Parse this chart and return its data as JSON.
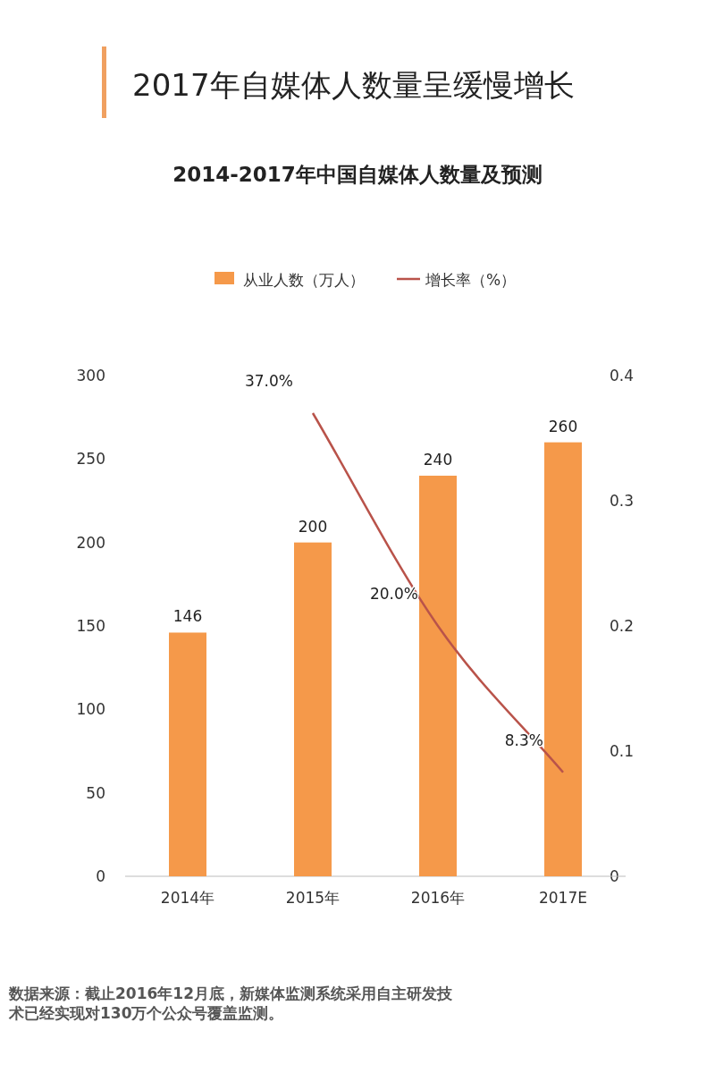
{
  "chart_data": {
    "type": "bar",
    "title": "2017年自媒体人数量呈缓慢增长",
    "subtitle": "2014-2017年中国自媒体人数量及预测",
    "categories": [
      "2014年",
      "2015年",
      "2016年",
      "2017E"
    ],
    "series": [
      {
        "name": "从业人数（万人）",
        "color": "#f5994a",
        "values": [
          146,
          200,
          240,
          260
        ],
        "value_labels": [
          "146",
          "200",
          "240",
          "260"
        ]
      },
      {
        "name": "增长率（%）",
        "type": "line",
        "axis": "y2",
        "color": "#b9534a",
        "values": [
          null,
          0.37,
          0.2,
          0.083
        ],
        "value_labels": [
          null,
          "37.0%",
          "20.0%",
          "8.3%"
        ]
      }
    ],
    "ylim": [
      0,
      300
    ],
    "yticks": [
      0,
      50,
      100,
      150,
      200,
      250,
      300
    ],
    "y2lim": [
      0,
      0.4
    ],
    "y2ticks": [
      0,
      0.1,
      0.2,
      0.3,
      0.4
    ],
    "legend": "top",
    "grid": false,
    "marker": "none",
    "line_style": "solid",
    "annotations": [
      "数据来源：截止2016年12月底，新媒体监测系统采用自主研发技术已经实现对130万个公众号覆盖监测。"
    ]
  }
}
